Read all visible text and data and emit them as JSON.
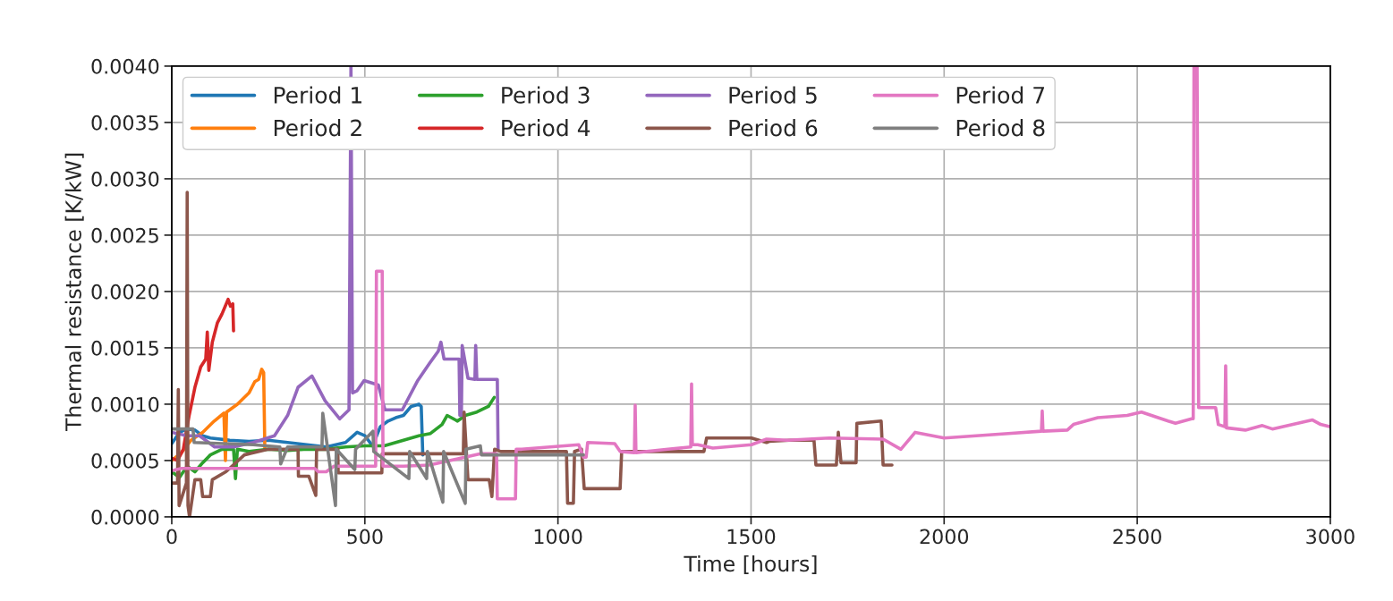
{
  "chart_data": {
    "type": "line",
    "xlabel": "Time [hours]",
    "ylabel": "Thermal resistance [K/kW]",
    "xlim": [
      0,
      3000
    ],
    "ylim": [
      0,
      0.004
    ],
    "xticks": [
      0,
      500,
      1000,
      1500,
      2000,
      2500,
      3000
    ],
    "yticks": [
      {
        "value": 0,
        "label": "0.0000"
      },
      {
        "value": 0.0005,
        "label": "0.0005"
      },
      {
        "value": 0.001,
        "label": "0.0010"
      },
      {
        "value": 0.0015,
        "label": "0.0015"
      },
      {
        "value": 0.002,
        "label": "0.0020"
      },
      {
        "value": 0.0025,
        "label": "0.0025"
      },
      {
        "value": 0.003,
        "label": "0.0030"
      },
      {
        "value": 0.0035,
        "label": "0.0035"
      },
      {
        "value": 0.004,
        "label": "0.0040"
      }
    ],
    "grid": true,
    "legend": "top left",
    "line_style": "solid",
    "marker": "none",
    "series": [
      {
        "name": "Period 1",
        "color": "#1f77b4",
        "x": [
          0,
          20,
          40,
          60,
          80,
          100,
          150,
          200,
          250,
          300,
          350,
          400,
          450,
          480,
          500,
          520,
          540,
          560,
          580,
          600,
          620,
          640,
          646,
          650
        ],
        "values": [
          0.00065,
          0.00075,
          0.00078,
          0.00077,
          0.00072,
          0.0007,
          0.00068,
          0.00067,
          0.00068,
          0.00066,
          0.00064,
          0.00062,
          0.00066,
          0.00075,
          0.00072,
          0.00063,
          0.0008,
          0.00085,
          0.00088,
          0.0009,
          0.00098,
          0.001,
          0.00098,
          0.00055
        ]
      },
      {
        "name": "Period 2",
        "color": "#ff7f0e",
        "x": [
          0,
          25,
          50,
          80,
          110,
          135,
          139,
          142,
          170,
          200,
          215,
          225,
          233,
          238,
          241
        ],
        "values": [
          0.0005,
          0.00057,
          0.00068,
          0.00075,
          0.00085,
          0.00092,
          0.0005,
          0.00093,
          0.001,
          0.0011,
          0.0012,
          0.00122,
          0.00131,
          0.00128,
          0.0006
        ]
      },
      {
        "name": "Period 3",
        "color": "#2ca02c",
        "x": [
          0,
          20,
          40,
          60,
          80,
          100,
          130,
          160,
          165,
          170,
          200,
          250,
          300,
          350,
          400,
          450,
          500,
          550,
          600,
          640,
          670,
          700,
          713,
          740,
          760,
          790,
          820,
          835
        ],
        "values": [
          0.0004,
          0.00035,
          0.00045,
          0.0004,
          0.00048,
          0.00055,
          0.0006,
          0.0006,
          0.00034,
          0.0006,
          0.00058,
          0.0006,
          0.00059,
          0.0006,
          0.0006,
          0.00062,
          0.00063,
          0.00063,
          0.00068,
          0.00072,
          0.00074,
          0.00082,
          0.0009,
          0.00085,
          0.0009,
          0.00093,
          0.00098,
          0.00106
        ]
      },
      {
        "name": "Period 4",
        "color": "#d62728",
        "x": [
          0,
          15,
          30,
          45,
          60,
          75,
          88,
          92,
          96,
          105,
          118,
          130,
          146,
          152,
          158,
          160
        ],
        "values": [
          0.00052,
          0.0005,
          0.0006,
          0.0009,
          0.00115,
          0.00133,
          0.0014,
          0.00164,
          0.0013,
          0.00155,
          0.00172,
          0.0018,
          0.00193,
          0.00187,
          0.00189,
          0.00165
        ]
      },
      {
        "name": "Period 5",
        "color": "#9467bd",
        "x": [
          0,
          40,
          72,
          111,
          160,
          211,
          266,
          300,
          327,
          363,
          397,
          435,
          459,
          464,
          468,
          480,
          498,
          535,
          552,
          560,
          597,
          637,
          667,
          690,
          697,
          705,
          744,
          746,
          750,
          752,
          767,
          785,
          787,
          790,
          829,
          843,
          845
        ],
        "values": [
          0.00075,
          0.00072,
          0.00072,
          0.00062,
          0.00062,
          0.00066,
          0.00072,
          0.0009,
          0.00115,
          0.00125,
          0.00103,
          0.00087,
          0.00095,
          0.004,
          0.0011,
          0.00112,
          0.00121,
          0.00117,
          0.00095,
          0.00095,
          0.00095,
          0.00121,
          0.00136,
          0.00147,
          0.00155,
          0.0014,
          0.0014,
          0.0009,
          0.0009,
          0.00152,
          0.00123,
          0.00122,
          0.00152,
          0.00122,
          0.00122,
          0.00122,
          0.0006
        ]
      },
      {
        "name": "Period 6",
        "color": "#8c564b",
        "x": [
          0,
          15,
          17,
          19,
          38,
          40,
          42,
          46,
          60,
          75,
          80,
          100,
          105,
          140,
          188,
          250,
          327,
          328,
          355,
          373,
          375,
          430,
          431,
          544,
          545,
          755,
          757,
          767,
          822,
          829,
          836,
          852,
          1022,
          1025,
          1040,
          1043,
          1061,
          1068,
          1161,
          1165,
          1378,
          1385,
          1501,
          1540,
          1547,
          1600,
          1663,
          1668,
          1721,
          1726,
          1733,
          1772,
          1774,
          1837,
          1842,
          1865
        ],
        "values": [
          0.0003,
          0.0003,
          0.00113,
          0.0001,
          0.0003,
          0.00288,
          0.0001,
          0,
          0.00033,
          0.00033,
          0.00018,
          0.00018,
          0.00033,
          0.0004,
          0.00055,
          0.0006,
          0.0006,
          0.00036,
          0.00036,
          0.00019,
          0.0006,
          0.0006,
          0.00039,
          0.00039,
          0.00056,
          0.00056,
          0.00093,
          0.00033,
          0.00033,
          0.00018,
          0.0006,
          0.00058,
          0.00058,
          0.00012,
          0.00012,
          0.00058,
          0.0006,
          0.00025,
          0.00025,
          0.00058,
          0.00058,
          0.0007,
          0.0007,
          0.00066,
          0.00067,
          0.00068,
          0.00068,
          0.00046,
          0.00046,
          0.00075,
          0.00048,
          0.00048,
          0.00083,
          0.00085,
          0.00046,
          0.00046
        ]
      },
      {
        "name": "Period 7",
        "color": "#e377c2",
        "x": [
          0,
          25,
          370,
          380,
          400,
          420,
          528,
          530,
          545,
          547,
          600,
          667,
          800,
          841,
          843,
          890,
          892,
          906,
          1054,
          1066,
          1073,
          1077,
          1147,
          1161,
          1198,
          1200,
          1202,
          1285,
          1344,
          1346,
          1348,
          1362,
          1401,
          1501,
          1540,
          1594,
          1703,
          1842,
          1888,
          1925,
          2000,
          2166,
          2252,
          2254,
          2256,
          2319,
          2335,
          2398,
          2474,
          2511,
          2580,
          2599,
          2641,
          2645,
          2647,
          2655,
          2659,
          2703,
          2710,
          2727,
          2729,
          2731,
          2780,
          2824,
          2850,
          2954,
          2975,
          2998
        ],
        "values": [
          0.00041,
          0.00043,
          0.00043,
          0.0004,
          0.0004,
          0.00045,
          0.00045,
          0.00218,
          0.00218,
          0.00045,
          0.00045,
          0.00046,
          0.00056,
          0.00056,
          0.00016,
          0.00016,
          0.0006,
          0.0006,
          0.00064,
          0.00053,
          0.00053,
          0.00066,
          0.00065,
          0.00058,
          0.00057,
          0.00099,
          0.00057,
          0.0006,
          0.00062,
          0.00118,
          0.00064,
          0.00064,
          0.00061,
          0.00064,
          0.00069,
          0.00068,
          0.0007,
          0.00069,
          0.0006,
          0.00075,
          0.0007,
          0.00074,
          0.00076,
          0.00094,
          0.00076,
          0.00077,
          0.00082,
          0.00088,
          0.0009,
          0.00093,
          0.00085,
          0.00083,
          0.00087,
          0.00087,
          0.004,
          0.004,
          0.00097,
          0.00097,
          0.00082,
          0.0008,
          0.00134,
          0.00079,
          0.00077,
          0.00081,
          0.00078,
          0.00086,
          0.00082,
          0.0008
        ]
      },
      {
        "name": "Period 8",
        "color": "#7f7f7f",
        "x": [
          0,
          55,
          58,
          211,
          280,
          282,
          300,
          389,
          391,
          424,
          426,
          474,
          476,
          521,
          523,
          614,
          616,
          660,
          662,
          702,
          704,
          760,
          762,
          799,
          802,
          1066
        ],
        "values": [
          0.00078,
          0.00078,
          0.00066,
          0.00064,
          0.00062,
          0.00047,
          0.00062,
          0.00062,
          0.00092,
          0.0001,
          0.0006,
          0.00042,
          0.0006,
          0.00076,
          0.00058,
          0.00034,
          0.00058,
          0.00034,
          0.00058,
          0.00013,
          0.00058,
          0.00012,
          0.0006,
          0.00063,
          0.00055,
          0.00055
        ]
      }
    ]
  }
}
